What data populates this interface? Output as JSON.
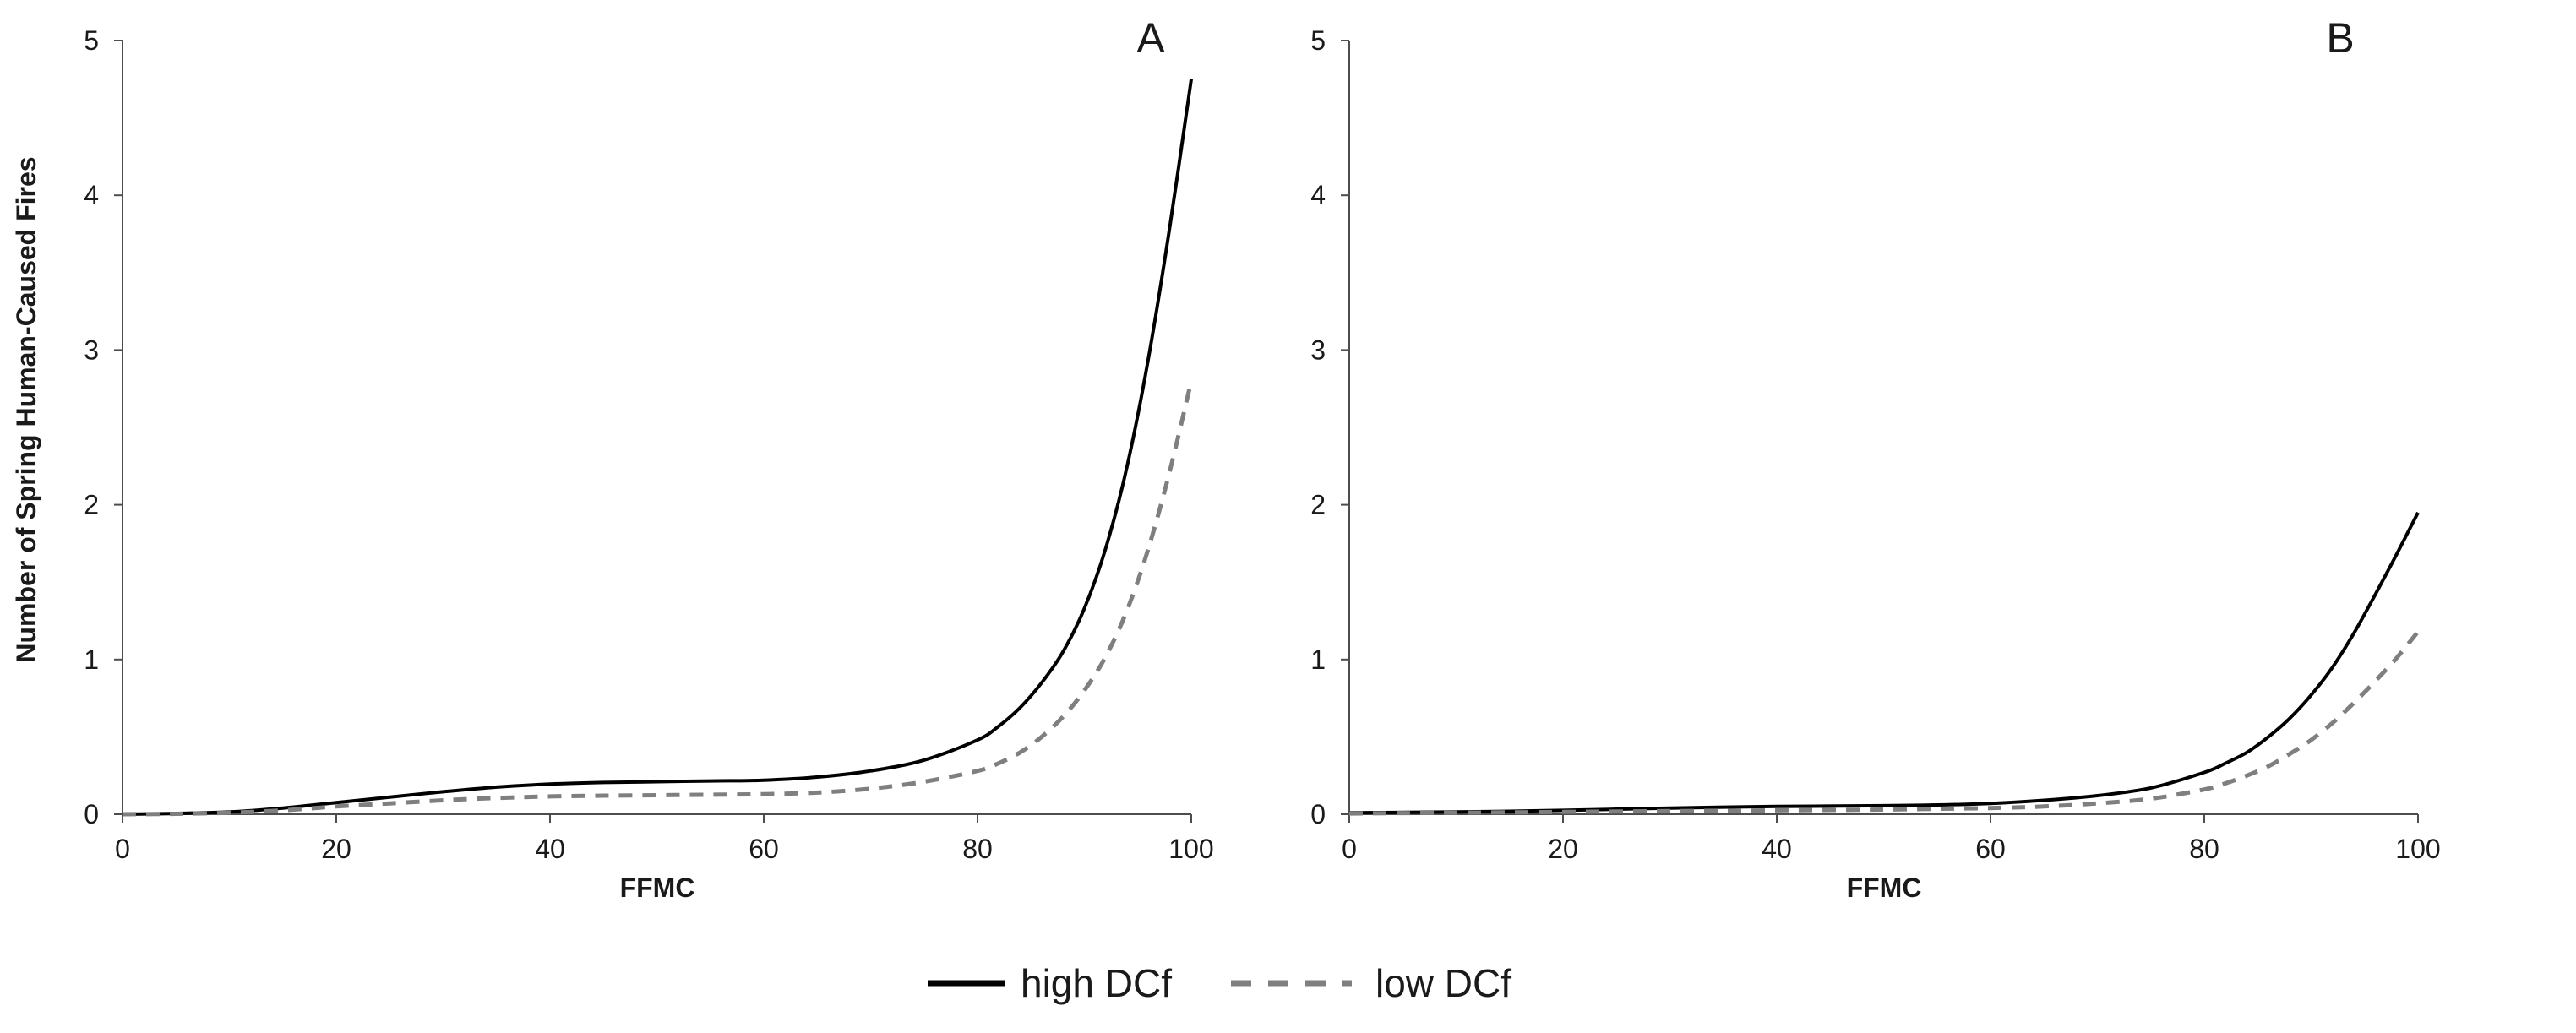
{
  "chart_data": [
    {
      "type": "line",
      "panel_label": "A",
      "xlabel": "FFMC",
      "ylabel": "Number of Spring Human-Caused Fires",
      "xlim": [
        0,
        100
      ],
      "ylim": [
        0,
        5
      ],
      "xticks": [
        "0",
        "20",
        "40",
        "60",
        "80",
        "100"
      ],
      "yticks": [
        "0",
        "1",
        "2",
        "3",
        "4",
        "5"
      ],
      "grid": false,
      "series": [
        {
          "name": "high DCf",
          "style": "solid",
          "color": "#000000",
          "x": [
            0,
            5,
            10,
            15,
            20,
            25,
            30,
            35,
            40,
            45,
            50,
            55,
            60,
            65,
            70,
            75,
            80,
            82,
            84,
            86,
            88,
            90,
            92,
            94,
            96,
            98,
            100
          ],
          "y": [
            0,
            0.005,
            0.015,
            0.04,
            0.075,
            0.11,
            0.145,
            0.175,
            0.195,
            0.205,
            0.21,
            0.215,
            0.22,
            0.24,
            0.28,
            0.35,
            0.48,
            0.57,
            0.69,
            0.85,
            1.05,
            1.33,
            1.72,
            2.25,
            2.95,
            3.8,
            4.75
          ]
        },
        {
          "name": "low DCf",
          "style": "dashed",
          "color": "#7f7f7f",
          "x": [
            0,
            5,
            10,
            15,
            20,
            25,
            30,
            35,
            40,
            45,
            50,
            55,
            60,
            65,
            70,
            75,
            80,
            82,
            84,
            86,
            88,
            90,
            92,
            94,
            96,
            98,
            100
          ],
          "y": [
            0,
            0.003,
            0.01,
            0.025,
            0.05,
            0.07,
            0.09,
            0.105,
            0.115,
            0.12,
            0.123,
            0.126,
            0.13,
            0.14,
            0.165,
            0.21,
            0.28,
            0.33,
            0.4,
            0.5,
            0.63,
            0.8,
            1.02,
            1.32,
            1.72,
            2.22,
            2.8
          ]
        }
      ]
    },
    {
      "type": "line",
      "panel_label": "B",
      "xlabel": "FFMC",
      "ylabel": "",
      "xlim": [
        0,
        100
      ],
      "ylim": [
        0,
        5
      ],
      "xticks": [
        "0",
        "20",
        "40",
        "60",
        "80",
        "100"
      ],
      "yticks": [
        "0",
        "1",
        "2",
        "3",
        "4",
        "5"
      ],
      "grid": false,
      "series": [
        {
          "name": "high DCf",
          "style": "solid",
          "color": "#000000",
          "x": [
            0,
            10,
            20,
            30,
            40,
            50,
            55,
            60,
            65,
            70,
            75,
            80,
            82,
            84,
            86,
            88,
            90,
            92,
            94,
            96,
            98,
            100
          ],
          "y": [
            0.01,
            0.015,
            0.025,
            0.04,
            0.05,
            0.055,
            0.06,
            0.07,
            0.09,
            0.12,
            0.17,
            0.27,
            0.33,
            0.4,
            0.5,
            0.62,
            0.77,
            0.95,
            1.17,
            1.42,
            1.68,
            1.95
          ]
        },
        {
          "name": "low DCf",
          "style": "dashed",
          "color": "#7f7f7f",
          "x": [
            0,
            10,
            20,
            30,
            40,
            50,
            55,
            60,
            65,
            70,
            75,
            80,
            82,
            84,
            86,
            88,
            90,
            92,
            94,
            96,
            98,
            100
          ],
          "y": [
            0.005,
            0.01,
            0.015,
            0.02,
            0.025,
            0.03,
            0.035,
            0.04,
            0.05,
            0.07,
            0.1,
            0.16,
            0.2,
            0.25,
            0.31,
            0.39,
            0.48,
            0.59,
            0.72,
            0.86,
            1.01,
            1.18
          ]
        }
      ]
    }
  ],
  "legend": {
    "position": "bottom-center",
    "items": [
      {
        "label": "high DCf",
        "style": "solid",
        "color": "#000000"
      },
      {
        "label": "low DCf",
        "style": "dashed",
        "color": "#7f7f7f"
      }
    ]
  }
}
